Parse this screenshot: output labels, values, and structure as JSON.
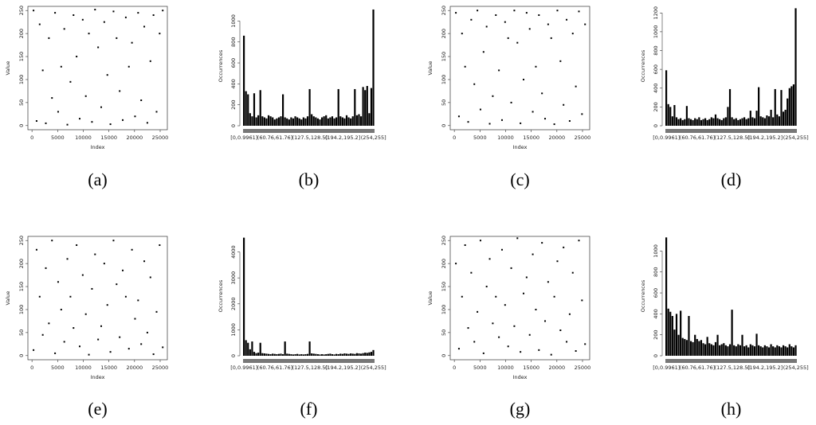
{
  "chart_data": [
    {
      "type": "scatter",
      "caption": "(a)",
      "x_label": "Index",
      "y_label": "Value",
      "xlim": [
        -800,
        26400
      ],
      "ylim": [
        -9,
        259
      ],
      "xticks": [
        0,
        5000,
        10000,
        15000,
        20000,
        25000
      ],
      "yticks": [
        0,
        50,
        100,
        150,
        200,
        250
      ],
      "color": "#000000",
      "x": [
        300,
        900,
        1500,
        2100,
        2700,
        3300,
        3900,
        4500,
        5100,
        5700,
        6300,
        6900,
        7500,
        8100,
        8700,
        9300,
        9900,
        10500,
        11100,
        11700,
        12300,
        12900,
        13500,
        14100,
        14700,
        15300,
        15900,
        16500,
        17100,
        17700,
        18300,
        18900,
        19500,
        20100,
        20700,
        21300,
        21900,
        22500,
        23100,
        23700,
        24300,
        24900,
        25500
      ],
      "y": [
        250,
        10,
        220,
        120,
        5,
        190,
        60,
        245,
        30,
        128,
        210,
        2,
        95,
        240,
        150,
        15,
        230,
        64,
        200,
        8,
        252,
        170,
        40,
        225,
        110,
        3,
        248,
        190,
        75,
        12,
        235,
        128,
        180,
        20,
        245,
        55,
        215,
        6,
        140,
        240,
        30,
        200,
        250
      ]
    },
    {
      "type": "histogram",
      "caption": "(b)",
      "y_label": "Occurrences",
      "ylim": [
        0,
        1140
      ],
      "yticks": [
        0,
        200,
        400,
        600,
        800,
        1000
      ],
      "color": "#000000",
      "categories": [
        "[0,0.9961]",
        null,
        null,
        null,
        null,
        null,
        null,
        null,
        null,
        null,
        null,
        null,
        null,
        null,
        null,
        "(60.76,61.76]",
        null,
        null,
        null,
        null,
        null,
        null,
        null,
        null,
        null,
        null,
        null,
        null,
        null,
        null,
        null,
        null,
        "(127.5,128.5]",
        null,
        null,
        null,
        null,
        null,
        null,
        null,
        null,
        null,
        null,
        null,
        null,
        null,
        null,
        null,
        "(194.2,195.2]",
        null,
        null,
        null,
        null,
        null,
        null,
        null,
        null,
        null,
        null,
        null,
        null,
        null,
        null,
        "(254,255]"
      ],
      "values": [
        860,
        330,
        300,
        120,
        90,
        310,
        80,
        100,
        340,
        90,
        80,
        70,
        100,
        90,
        80,
        60,
        70,
        80,
        90,
        300,
        80,
        70,
        60,
        80,
        70,
        90,
        80,
        70,
        60,
        80,
        70,
        90,
        350,
        110,
        90,
        80,
        70,
        60,
        80,
        90,
        100,
        70,
        80,
        90,
        70,
        80,
        350,
        90,
        80,
        70,
        100,
        80,
        70,
        90,
        350,
        100,
        110,
        90,
        370,
        340,
        380,
        120,
        360,
        1110
      ]
    },
    {
      "type": "scatter",
      "caption": "(c)",
      "x_label": "Index",
      "y_label": "Value",
      "xlim": [
        -800,
        26400
      ],
      "ylim": [
        -9,
        259
      ],
      "xticks": [
        0,
        5000,
        10000,
        15000,
        20000,
        25000
      ],
      "yticks": [
        0,
        50,
        100,
        150,
        200,
        250
      ],
      "color": "#000000",
      "x": [
        300,
        900,
        1500,
        2100,
        2700,
        3300,
        3900,
        4500,
        5100,
        5700,
        6300,
        6900,
        7500,
        8100,
        8700,
        9300,
        9900,
        10500,
        11100,
        11700,
        12300,
        12900,
        13500,
        14100,
        14700,
        15300,
        15900,
        16500,
        17100,
        17700,
        18300,
        18900,
        19500,
        20100,
        20700,
        21300,
        21900,
        22500,
        23100,
        23700,
        24300,
        24900,
        25500
      ],
      "y": [
        245,
        20,
        200,
        128,
        8,
        230,
        90,
        250,
        35,
        160,
        215,
        4,
        64,
        240,
        120,
        12,
        225,
        190,
        50,
        250,
        180,
        5,
        100,
        245,
        210,
        30,
        128,
        240,
        70,
        15,
        220,
        190,
        3,
        250,
        140,
        45,
        230,
        10,
        200,
        85,
        248,
        25,
        220
      ]
    },
    {
      "type": "histogram",
      "caption": "(d)",
      "y_label": "Occurrences",
      "ylim": [
        0,
        1270
      ],
      "yticks": [
        0,
        200,
        400,
        600,
        800,
        1000,
        1200
      ],
      "color": "#000000",
      "categories": [
        "[0,0.9961]",
        null,
        null,
        null,
        null,
        null,
        null,
        null,
        null,
        null,
        null,
        null,
        null,
        null,
        null,
        "(60.76,61.76]",
        null,
        null,
        null,
        null,
        null,
        null,
        null,
        null,
        null,
        null,
        null,
        null,
        null,
        null,
        null,
        null,
        "(127.5,128.5]",
        null,
        null,
        null,
        null,
        null,
        null,
        null,
        null,
        null,
        null,
        null,
        null,
        null,
        null,
        null,
        "(194.2,195.2]",
        null,
        null,
        null,
        null,
        null,
        null,
        null,
        null,
        null,
        null,
        null,
        null,
        null,
        null,
        "(254,255]"
      ],
      "values": [
        590,
        230,
        200,
        100,
        220,
        90,
        70,
        80,
        60,
        70,
        210,
        80,
        70,
        60,
        80,
        70,
        90,
        60,
        70,
        80,
        60,
        70,
        90,
        80,
        120,
        80,
        70,
        60,
        80,
        90,
        200,
        390,
        90,
        70,
        80,
        60,
        70,
        80,
        90,
        70,
        80,
        160,
        90,
        80,
        160,
        410,
        100,
        90,
        80,
        110,
        100,
        170,
        90,
        390,
        120,
        100,
        380,
        150,
        170,
        290,
        400,
        420,
        440,
        1250
      ]
    },
    {
      "type": "scatter",
      "caption": "(e)",
      "x_label": "Index",
      "y_label": "Value",
      "xlim": [
        -800,
        26400
      ],
      "ylim": [
        -9,
        259
      ],
      "xticks": [
        0,
        5000,
        10000,
        15000,
        20000,
        25000
      ],
      "yticks": [
        0,
        50,
        100,
        150,
        200,
        250
      ],
      "color": "#000000",
      "x": [
        300,
        900,
        1500,
        2100,
        2700,
        3300,
        3900,
        4500,
        5100,
        5700,
        6300,
        6900,
        7500,
        8100,
        8700,
        9300,
        9900,
        10500,
        11100,
        11700,
        12300,
        12900,
        13500,
        14100,
        14700,
        15300,
        15900,
        16500,
        17100,
        17700,
        18300,
        18900,
        19500,
        20100,
        20700,
        21300,
        21900,
        22500,
        23100,
        23700,
        24300,
        24900,
        25500
      ],
      "y": [
        12,
        230,
        128,
        45,
        190,
        70,
        250,
        5,
        160,
        100,
        30,
        210,
        128,
        60,
        240,
        20,
        175,
        90,
        2,
        145,
        220,
        35,
        64,
        200,
        110,
        8,
        250,
        155,
        40,
        185,
        128,
        15,
        230,
        80,
        120,
        25,
        205,
        50,
        170,
        3,
        95,
        240,
        18
      ]
    },
    {
      "type": "histogram",
      "caption": "(f)",
      "y_label": "Occurrences",
      "ylim": [
        0,
        4600
      ],
      "yticks": [
        0,
        1000,
        2000,
        3000,
        4000
      ],
      "color": "#000000",
      "categories": [
        "[0,0.9961]",
        null,
        null,
        null,
        null,
        null,
        null,
        null,
        null,
        null,
        null,
        null,
        null,
        null,
        null,
        "(60.76,61.76]",
        null,
        null,
        null,
        null,
        null,
        null,
        null,
        null,
        null,
        null,
        null,
        null,
        null,
        null,
        null,
        null,
        "(127.5,128.5]",
        null,
        null,
        null,
        null,
        null,
        null,
        null,
        null,
        null,
        null,
        null,
        null,
        null,
        null,
        null,
        "(194.2,195.2]",
        null,
        null,
        null,
        null,
        null,
        null,
        null,
        null,
        null,
        null,
        null,
        null,
        null,
        null,
        "(254,255]"
      ],
      "values": [
        4550,
        600,
        500,
        250,
        550,
        150,
        100,
        120,
        500,
        100,
        90,
        80,
        70,
        60,
        80,
        70,
        60,
        70,
        80,
        60,
        550,
        80,
        70,
        60,
        50,
        60,
        70,
        50,
        60,
        50,
        60,
        70,
        550,
        90,
        80,
        70,
        60,
        50,
        60,
        50,
        60,
        70,
        80,
        60,
        50,
        70,
        60,
        80,
        70,
        90,
        80,
        70,
        90,
        80,
        70,
        100,
        90,
        80,
        100,
        120,
        110,
        130,
        150,
        220
      ]
    },
    {
      "type": "scatter",
      "caption": "(g)",
      "x_label": "Index",
      "y_label": "Value",
      "xlim": [
        -800,
        26400
      ],
      "ylim": [
        -9,
        259
      ],
      "xticks": [
        0,
        5000,
        10000,
        15000,
        20000,
        25000
      ],
      "yticks": [
        0,
        50,
        100,
        150,
        200,
        250
      ],
      "color": "#000000",
      "x": [
        300,
        900,
        1500,
        2100,
        2700,
        3300,
        3900,
        4500,
        5100,
        5700,
        6300,
        6900,
        7500,
        8100,
        8700,
        9300,
        9900,
        10500,
        11100,
        11700,
        12300,
        12900,
        13500,
        14100,
        14700,
        15300,
        15900,
        16500,
        17100,
        17700,
        18300,
        18900,
        19500,
        20100,
        20700,
        21300,
        21900,
        22500,
        23100,
        23700,
        24300,
        24900,
        25500
      ],
      "y": [
        200,
        15,
        128,
        240,
        60,
        180,
        30,
        95,
        250,
        5,
        150,
        210,
        70,
        128,
        40,
        230,
        110,
        20,
        190,
        64,
        255,
        8,
        135,
        170,
        45,
        220,
        100,
        12,
        245,
        75,
        160,
        2,
        128,
        205,
        55,
        235,
        30,
        90,
        180,
        10,
        250,
        120,
        25
      ]
    },
    {
      "type": "histogram",
      "caption": "(h)",
      "y_label": "Occurrences",
      "ylim": [
        0,
        1140
      ],
      "yticks": [
        0,
        200,
        400,
        600,
        800,
        1000
      ],
      "color": "#000000",
      "categories": [
        "[0,0.9961]",
        null,
        null,
        null,
        null,
        null,
        null,
        null,
        null,
        null,
        null,
        null,
        null,
        null,
        null,
        "(60.76,61.76]",
        null,
        null,
        null,
        null,
        null,
        null,
        null,
        null,
        null,
        null,
        null,
        null,
        null,
        null,
        null,
        null,
        "(127.5,128.5]",
        null,
        null,
        null,
        null,
        null,
        null,
        null,
        null,
        null,
        null,
        null,
        null,
        null,
        null,
        null,
        "(194.2,195.2]",
        null,
        null,
        null,
        null,
        null,
        null,
        null,
        null,
        null,
        null,
        null,
        null,
        null,
        null,
        "(254,255]"
      ],
      "values": [
        1130,
        450,
        420,
        380,
        250,
        400,
        200,
        430,
        170,
        160,
        150,
        380,
        140,
        130,
        200,
        160,
        140,
        150,
        120,
        110,
        180,
        120,
        110,
        100,
        130,
        200,
        100,
        110,
        120,
        100,
        90,
        110,
        440,
        100,
        90,
        110,
        100,
        200,
        90,
        100,
        80,
        110,
        100,
        90,
        210,
        100,
        90,
        80,
        100,
        90,
        80,
        110,
        90,
        80,
        100,
        90,
        80,
        100,
        90,
        80,
        110,
        90,
        80,
        100
      ]
    }
  ]
}
